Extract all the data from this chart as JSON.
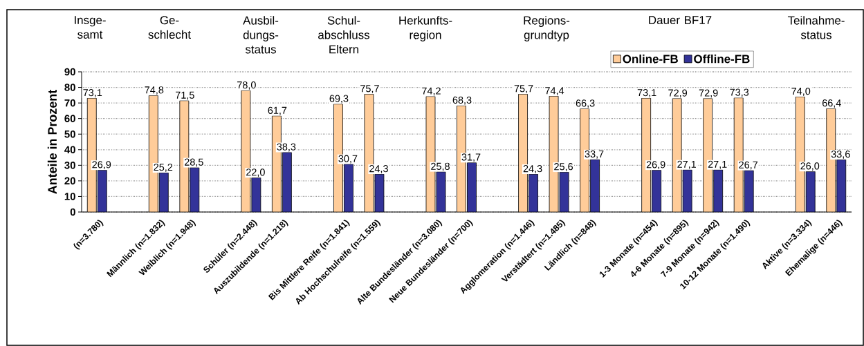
{
  "chart_data": {
    "type": "bar",
    "ylabel": "Anteile in Prozent",
    "categories": [
      "(n=3.780)",
      null,
      "Männlich (n=1.832)",
      "Weiblich (n=1.948)",
      null,
      "Schüler (n=2.448)",
      "Auszubildende (n=1.218)",
      null,
      "Bis Mittlere Reife (n=1.841)",
      "Ab Hochschulreife (n=1.559)",
      null,
      "Alte Bundesländer (n=3.080)",
      "Neue Bundesländer (n=700)",
      null,
      "Agglomeration (n=1.446)",
      "Verstädtert (n=1.485)",
      "Ländlich (n=848)",
      null,
      "1-3 Monate (n=454)",
      "4-6 Monate (n=895)",
      "7-9 Monate (n=942)",
      "10-12 Monate (n=1.490)",
      null,
      "Aktive (n=3.334)",
      "Ehemalige (n=446)"
    ],
    "series": [
      {
        "name": "Online-FB",
        "color": "#ffcc99",
        "values": [
          73.1,
          null,
          74.8,
          71.5,
          null,
          78.0,
          61.7,
          null,
          69.3,
          75.7,
          null,
          74.2,
          68.3,
          null,
          75.7,
          74.4,
          66.3,
          null,
          73.1,
          72.9,
          72.9,
          73.3,
          null,
          74.0,
          66.4
        ],
        "value_labels": [
          "73,1",
          null,
          "74,8",
          "71,5",
          null,
          "78,0",
          "61,7",
          null,
          "69,3",
          "75,7",
          null,
          "74,2",
          "68,3",
          null,
          "75,7",
          "74,4",
          "66,3",
          null,
          "73,1",
          "72,9",
          "72,9",
          "73,3",
          null,
          "74,0",
          "66,4"
        ]
      },
      {
        "name": "Offline-FB",
        "color": "#333399",
        "values": [
          26.9,
          null,
          25.2,
          28.5,
          null,
          22.0,
          38.3,
          null,
          30.7,
          24.3,
          null,
          25.8,
          31.7,
          null,
          24.3,
          25.6,
          33.7,
          null,
          26.9,
          27.1,
          27.1,
          26.7,
          null,
          26.0,
          33.6
        ],
        "value_labels": [
          "26,9",
          null,
          "25,2",
          "28,5",
          null,
          "22,0",
          "38,3",
          null,
          "30,7",
          "24,3",
          null,
          "25,8",
          "31,7",
          null,
          "24,3",
          "25,6",
          "33,7",
          null,
          "26,9",
          "27,1",
          "27,1",
          "26,7",
          null,
          "26,0",
          "33,6"
        ]
      }
    ],
    "ylim": [
      0,
      90
    ],
    "yticks": [
      0,
      10,
      20,
      30,
      40,
      50,
      60,
      70,
      80,
      90
    ],
    "grid": "y",
    "legend": "top",
    "annotations": [
      "Insge- samt",
      "Ge- schlecht",
      "Ausbil- dungs- status",
      "Schul- abschluss Eltern",
      "Herkunfts- region",
      "Regions- grundtyp",
      "Dauer BF17",
      "Teilnahme- status"
    ]
  }
}
